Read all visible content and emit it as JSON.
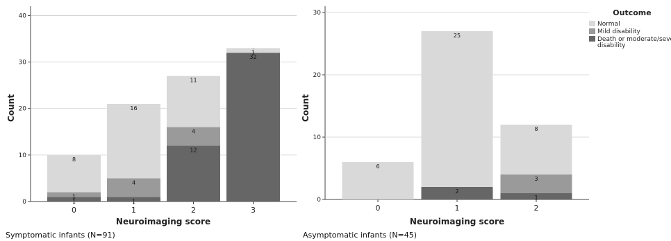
{
  "chart_data": [
    {
      "type": "bar",
      "stacked": true,
      "caption": "Symptomatic infants (N=91)",
      "xlabel": "Neuroimaging score",
      "ylabel": "Count",
      "ylim": [
        0,
        42
      ],
      "yticks": [
        0,
        10,
        20,
        30,
        40
      ],
      "categories": [
        "0",
        "1",
        "2",
        "3"
      ],
      "series": [
        {
          "name": "Death or moderate/severe disability",
          "values": [
            1,
            1,
            12,
            32
          ]
        },
        {
          "name": "Mild disability",
          "values": [
            1,
            4,
            4,
            0
          ]
        },
        {
          "name": "Normal",
          "values": [
            8,
            16,
            11,
            1
          ]
        }
      ],
      "grid": true
    },
    {
      "type": "bar",
      "stacked": true,
      "caption": "Asymptomatic infants (N=45)",
      "xlabel": "Neuroimaging score",
      "ylabel": "Count",
      "ylim": [
        0,
        31
      ],
      "yticks": [
        0,
        10,
        20,
        30
      ],
      "categories": [
        "0",
        "1",
        "2"
      ],
      "series": [
        {
          "name": "Death or moderate/severe disability",
          "values": [
            0,
            2,
            1
          ]
        },
        {
          "name": "Mild disability",
          "values": [
            0,
            0,
            3
          ]
        },
        {
          "name": "Normal",
          "values": [
            6,
            25,
            8
          ]
        }
      ],
      "grid": true
    }
  ],
  "legend": {
    "title": "Outcome",
    "items": [
      {
        "label": "Normal",
        "color": "#d9d9d9"
      },
      {
        "label": "Mild disability",
        "color": "#9a9a9a"
      },
      {
        "label": "Death or moderate/severe disability",
        "color": "#666666"
      }
    ]
  },
  "colors": {
    "Death or moderate/severe disability": "#666666",
    "Mild disability": "#9a9a9a",
    "Normal": "#d9d9d9"
  }
}
